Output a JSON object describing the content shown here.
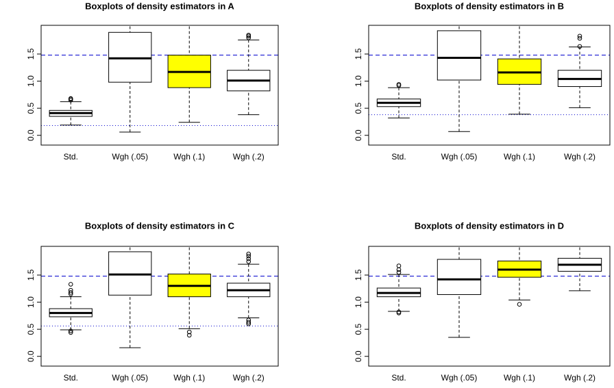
{
  "chart_data": [
    {
      "type": "box",
      "title": "Boxplots of density estimators in A",
      "categories": [
        "Std.",
        "Wgh (.05)",
        "Wgh (.1)",
        "Wgh (.2)"
      ],
      "colors": [
        "#ffffff",
        "#ffffff",
        "#ffff00",
        "#ffffff"
      ],
      "boxes": [
        {
          "whislo": 0.19,
          "q1": 0.35,
          "med": 0.41,
          "q3": 0.46,
          "whishi": 0.62,
          "fliers": [
            0.65,
            0.67,
            0.68
          ]
        },
        {
          "whislo": 0.06,
          "q1": 0.98,
          "med": 1.42,
          "q3": 1.9,
          "whishi": 2.1,
          "fliers": []
        },
        {
          "whislo": 0.24,
          "q1": 0.88,
          "med": 1.17,
          "q3": 1.48,
          "whishi": 2.1,
          "fliers": []
        },
        {
          "whislo": 0.38,
          "q1": 0.82,
          "med": 1.01,
          "q3": 1.2,
          "whishi": 1.76,
          "fliers": [
            1.8,
            1.83,
            1.85
          ]
        }
      ],
      "hlines": [
        {
          "value": 1.48,
          "style": "dashed",
          "color": "#0000cd"
        },
        {
          "value": 0.18,
          "style": "dotted",
          "color": "#0000cd"
        }
      ],
      "ylim": [
        -0.18,
        2.03
      ],
      "yticks": [
        {
          "value": 0,
          "label": "0.0"
        },
        {
          "value": 0.5,
          "label": "0.5"
        },
        {
          "value": 1,
          "label": "1.0"
        },
        {
          "value": 1.5,
          "label": "1.5"
        }
      ]
    },
    {
      "type": "box",
      "title": "Boxplots of density estimators in B",
      "categories": [
        "Std.",
        "Wgh (.05)",
        "Wgh (.1)",
        "Wgh (.2)"
      ],
      "colors": [
        "#ffffff",
        "#ffffff",
        "#ffff00",
        "#ffffff"
      ],
      "boxes": [
        {
          "whislo": 0.32,
          "q1": 0.53,
          "med": 0.6,
          "q3": 0.67,
          "whishi": 0.88,
          "fliers": [
            0.92,
            0.94
          ]
        },
        {
          "whislo": 0.07,
          "q1": 1.02,
          "med": 1.43,
          "q3": 1.93,
          "whishi": 2.1,
          "fliers": []
        },
        {
          "whislo": 0.39,
          "q1": 0.94,
          "med": 1.16,
          "q3": 1.41,
          "whishi": 2.1,
          "fliers": []
        },
        {
          "whislo": 0.51,
          "q1": 0.9,
          "med": 1.04,
          "q3": 1.2,
          "whishi": 1.63,
          "fliers": [
            1.64,
            1.79,
            1.83
          ]
        }
      ],
      "hlines": [
        {
          "value": 1.48,
          "style": "dashed",
          "color": "#0000cd"
        },
        {
          "value": 0.38,
          "style": "dotted",
          "color": "#0000cd"
        }
      ],
      "ylim": [
        -0.18,
        2.03
      ],
      "yticks": [
        {
          "value": 0,
          "label": "0.0"
        },
        {
          "value": 0.5,
          "label": "0.5"
        },
        {
          "value": 1,
          "label": "1.0"
        },
        {
          "value": 1.5,
          "label": "1.5"
        }
      ]
    },
    {
      "type": "box",
      "title": "Boxplots of density estimators in C",
      "categories": [
        "Std.",
        "Wgh (.05)",
        "Wgh (.1)",
        "Wgh (.2)"
      ],
      "colors": [
        "#ffffff",
        "#ffffff",
        "#ffff00",
        "#ffffff"
      ],
      "boxes": [
        {
          "whislo": 0.49,
          "q1": 0.73,
          "med": 0.8,
          "q3": 0.88,
          "whishi": 1.1,
          "fliers": [
            0.44,
            0.47,
            1.15,
            1.18,
            1.22,
            1.33
          ]
        },
        {
          "whislo": 0.16,
          "q1": 1.13,
          "med": 1.51,
          "q3": 1.93,
          "whishi": 2.1,
          "fliers": []
        },
        {
          "whislo": 0.51,
          "q1": 1.1,
          "med": 1.3,
          "q3": 1.52,
          "whishi": 2.1,
          "fliers": [
            0.39,
            0.45
          ]
        },
        {
          "whislo": 0.71,
          "q1": 1.1,
          "med": 1.22,
          "q3": 1.35,
          "whishi": 1.7,
          "fliers": [
            0.6,
            0.63,
            0.67,
            1.75,
            1.8,
            1.85,
            1.89
          ]
        }
      ],
      "hlines": [
        {
          "value": 1.48,
          "style": "dashed",
          "color": "#0000cd"
        },
        {
          "value": 0.56,
          "style": "dotted",
          "color": "#0000cd"
        }
      ],
      "ylim": [
        -0.18,
        2.03
      ],
      "yticks": [
        {
          "value": 0,
          "label": "0.0"
        },
        {
          "value": 0.5,
          "label": "0.5"
        },
        {
          "value": 1,
          "label": "1.0"
        },
        {
          "value": 1.5,
          "label": "1.5"
        }
      ]
    },
    {
      "type": "box",
      "title": "Boxplots of density estimators in D",
      "categories": [
        "Std.",
        "Wgh (.05)",
        "Wgh (.1)",
        "Wgh (.2)"
      ],
      "colors": [
        "#ffffff",
        "#ffffff",
        "#ffff00",
        "#ffffff"
      ],
      "boxes": [
        {
          "whislo": 0.83,
          "q1": 1.1,
          "med": 1.17,
          "q3": 1.26,
          "whishi": 1.51,
          "fliers": [
            0.8,
            0.82,
            1.55,
            1.6,
            1.67
          ]
        },
        {
          "whislo": 0.35,
          "q1": 1.14,
          "med": 1.42,
          "q3": 1.79,
          "whishi": 2.1,
          "fliers": []
        },
        {
          "whislo": 1.04,
          "q1": 1.46,
          "med": 1.6,
          "q3": 1.76,
          "whishi": 2.1,
          "fliers": [
            0.96
          ]
        },
        {
          "whislo": 1.21,
          "q1": 1.57,
          "med": 1.69,
          "q3": 1.81,
          "whishi": 2.1,
          "fliers": []
        }
      ],
      "hlines": [
        {
          "value": 1.48,
          "style": "dashed",
          "color": "#0000cd"
        }
      ],
      "ylim": [
        -0.18,
        2.03
      ],
      "yticks": [
        {
          "value": 0,
          "label": "0.0"
        },
        {
          "value": 0.5,
          "label": "0.5"
        },
        {
          "value": 1,
          "label": "1.0"
        },
        {
          "value": 1.5,
          "label": "1.5"
        }
      ]
    }
  ]
}
